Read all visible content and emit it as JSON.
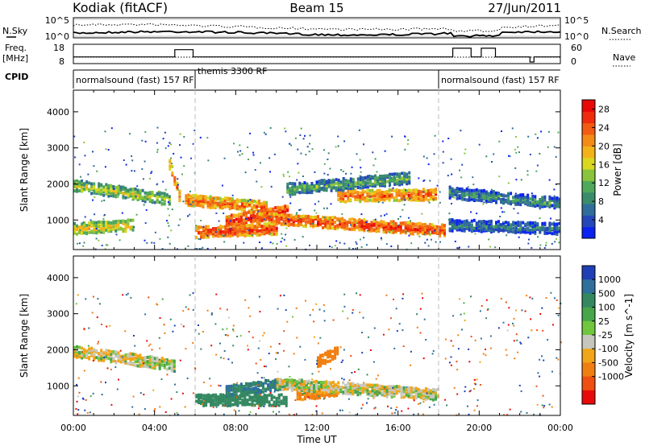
{
  "header": {
    "station": "Kodiak (fitACF)",
    "beam": "Beam 15",
    "date": "27/Jun/2011"
  },
  "left_labels": {
    "nsky": "N.Sky",
    "freq": "Freq.",
    "freq_unit": "[MHz]",
    "cpid": "CPID"
  },
  "right_labels": {
    "nsearch": "N.Search",
    "nave": "Nave"
  },
  "noise_panel": {
    "left_ticks": [
      "10^5",
      "10^0"
    ],
    "right_ticks": [
      "10^5",
      "10^0"
    ]
  },
  "freq_panel": {
    "left_ticks": [
      "18",
      "8"
    ],
    "right_ticks": [
      "60",
      "0"
    ],
    "steps": [
      {
        "start_h": 0.0,
        "end_h": 5.0,
        "level": 0.35
      },
      {
        "start_h": 5.0,
        "end_h": 5.9,
        "level": 0.85
      },
      {
        "start_h": 5.9,
        "end_h": 18.7,
        "level": 0.35
      },
      {
        "start_h": 18.7,
        "end_h": 19.6,
        "level": 0.95
      },
      {
        "start_h": 19.6,
        "end_h": 20.1,
        "level": 0.35
      },
      {
        "start_h": 20.1,
        "end_h": 20.8,
        "level": 0.95
      },
      {
        "start_h": 20.8,
        "end_h": 22.5,
        "level": 0.35
      },
      {
        "start_h": 22.5,
        "end_h": 22.7,
        "level": 0.0
      },
      {
        "start_h": 22.7,
        "end_h": 24.0,
        "level": 0.35
      }
    ]
  },
  "cpid_segments": [
    {
      "label": "normalsound (fast) 157 RF",
      "start_h": 0.0
    },
    {
      "label": "themis 3300 RF",
      "start_h": 6.0
    },
    {
      "label": "normalsound (fast) 157 RF",
      "start_h": 18.0
    }
  ],
  "time_axis": {
    "label": "Time UT",
    "ticks": [
      "00:00",
      "04:00",
      "08:00",
      "12:00",
      "16:00",
      "20:00",
      "00:00"
    ],
    "range_h": [
      0,
      24
    ]
  },
  "range_axis": {
    "label": "Slant Range [km]",
    "ticks": [
      "1000",
      "2000",
      "3000",
      "4000"
    ],
    "range_km": [
      180,
      4600
    ]
  },
  "power_colorbar": {
    "label": "Power [dB]",
    "ticks": [
      "4",
      "8",
      "12",
      "16",
      "20",
      "24",
      "28"
    ],
    "colors": [
      "#0a23f0",
      "#2448b8",
      "#2f6e9a",
      "#3a8c6c",
      "#4fa95a",
      "#8ac43c",
      "#d9d71e",
      "#f4b219",
      "#f38a16",
      "#f25c12",
      "#ef2d0c",
      "#e80707"
    ]
  },
  "velocity_colorbar": {
    "label": "Velocity [m s^-1]",
    "ticks": [
      "1000",
      "500",
      "100",
      "25",
      "-25",
      "-100",
      "-500",
      "-1000"
    ],
    "colors": [
      "#1e3fb5",
      "#2e6f9c",
      "#338860",
      "#47a54a",
      "#70c63c",
      "#c7c6bd",
      "#f1a518",
      "#f07f12",
      "#ef4f10",
      "#e80a0a"
    ]
  },
  "chart_data": {
    "type": "heatmap",
    "title": "Kodiak (fitACF) Beam 15 27/Jun/2011",
    "xlabel": "Time UT",
    "x_range_hours": [
      0,
      24
    ],
    "panels": [
      {
        "name": "Power",
        "ylabel": "Slant Range [km]",
        "colorbar": "Power [dB]",
        "color_range": [
          0,
          30
        ],
        "scatter_echo_bands": [
          {
            "t_start_h": 0.0,
            "t_end_h": 4.8,
            "range_start_km": 2000,
            "range_end_km": 1600,
            "value_db": 16
          },
          {
            "t_start_h": 0.0,
            "t_end_h": 3.0,
            "range_start_km": 800,
            "range_end_km": 900,
            "value_db": 18
          },
          {
            "t_start_h": 4.7,
            "t_end_h": 5.3,
            "range_start_km": 2600,
            "range_end_km": 1500,
            "value_db": 24
          },
          {
            "t_start_h": 5.5,
            "t_end_h": 9.5,
            "range_start_km": 1600,
            "range_end_km": 1400,
            "value_db": 24
          },
          {
            "t_start_h": 6.0,
            "t_end_h": 10.0,
            "range_start_km": 700,
            "range_end_km": 800,
            "value_db": 26
          },
          {
            "t_start_h": 7.5,
            "t_end_h": 10.5,
            "range_start_km": 1000,
            "range_end_km": 1300,
            "value_db": 28
          },
          {
            "t_start_h": 9.0,
            "t_end_h": 18.3,
            "range_start_km": 1100,
            "range_end_km": 750,
            "value_db": 26
          },
          {
            "t_start_h": 13.0,
            "t_end_h": 17.8,
            "range_start_km": 1700,
            "range_end_km": 1750,
            "value_db": 24
          },
          {
            "t_start_h": 10.5,
            "t_end_h": 16.5,
            "range_start_km": 1900,
            "range_end_km": 2200,
            "value_db": 12
          },
          {
            "t_start_h": 18.5,
            "t_end_h": 24.0,
            "range_start_km": 1800,
            "range_end_km": 1500,
            "value_db": 10
          },
          {
            "t_start_h": 18.5,
            "t_end_h": 24.0,
            "range_start_km": 900,
            "range_end_km": 800,
            "value_db": 8
          }
        ]
      },
      {
        "name": "Velocity",
        "ylabel": "Slant Range [km]",
        "colorbar": "Velocity [m s^-1]",
        "color_range": [
          -1000,
          1000
        ],
        "scatter_echo_bands": [
          {
            "t_start_h": 0.0,
            "t_end_h": 5.0,
            "range_start_km": 2000,
            "range_end_km": 1600,
            "value_ms": 0
          },
          {
            "t_start_h": 6.0,
            "t_end_h": 10.5,
            "range_start_km": 650,
            "range_end_km": 650,
            "value_ms": 200
          },
          {
            "t_start_h": 7.5,
            "t_end_h": 10.5,
            "range_start_km": 900,
            "range_end_km": 1100,
            "value_ms": 300
          },
          {
            "t_start_h": 11.0,
            "t_end_h": 13.0,
            "range_start_km": 800,
            "range_end_km": 900,
            "value_ms": -150
          },
          {
            "t_start_h": 12.0,
            "t_end_h": 13.0,
            "range_start_km": 1700,
            "range_end_km": 2000,
            "value_ms": -400
          },
          {
            "t_start_h": 10.0,
            "t_end_h": 18.0,
            "range_start_km": 1100,
            "range_end_km": 800,
            "value_ms": 0
          }
        ]
      }
    ]
  }
}
